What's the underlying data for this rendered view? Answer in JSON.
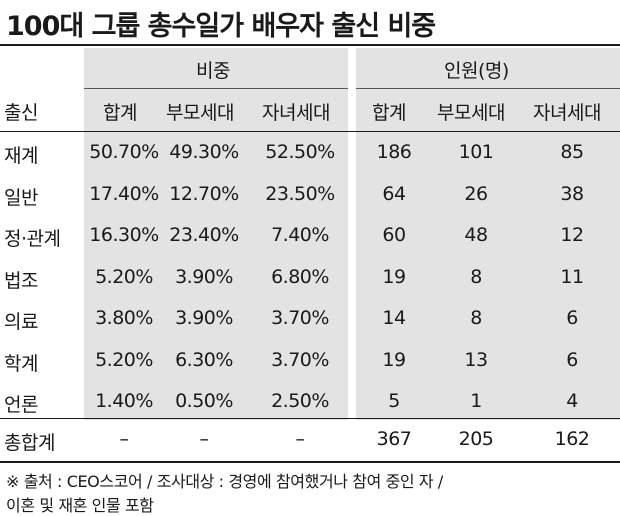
{
  "title": "100대 그룹 총수일가 배우자 출신 비중",
  "groups": {
    "ratio": "비중",
    "count": "인원(명)"
  },
  "columns": {
    "origin": "출신",
    "total": "합계",
    "parent_gen": "부모세대",
    "child_gen": "자녀세대",
    "total2": "합계",
    "parent_gen2": "부모세대",
    "child_gen2": "자녀세대"
  },
  "rows": [
    {
      "origin": "재계",
      "r_total": "50.70%",
      "r_parent": "49.30%",
      "r_child": "52.50%",
      "n_total": "186",
      "n_parent": "101",
      "n_child": "85"
    },
    {
      "origin": "일반",
      "r_total": "17.40%",
      "r_parent": "12.70%",
      "r_child": "23.50%",
      "n_total": "64",
      "n_parent": "26",
      "n_child": "38"
    },
    {
      "origin": "정·관계",
      "r_total": "16.30%",
      "r_parent": "23.40%",
      "r_child": "7.40%",
      "n_total": "60",
      "n_parent": "48",
      "n_child": "12"
    },
    {
      "origin": "법조",
      "r_total": "5.20%",
      "r_parent": "3.90%",
      "r_child": "6.80%",
      "n_total": "19",
      "n_parent": "8",
      "n_child": "11"
    },
    {
      "origin": "의료",
      "r_total": "3.80%",
      "r_parent": "3.90%",
      "r_child": "3.70%",
      "n_total": "14",
      "n_parent": "8",
      "n_child": "6"
    },
    {
      "origin": "학계",
      "r_total": "5.20%",
      "r_parent": "6.30%",
      "r_child": "3.70%",
      "n_total": "19",
      "n_parent": "13",
      "n_child": "6"
    },
    {
      "origin": "언론",
      "r_total": "1.40%",
      "r_parent": "0.50%",
      "r_child": "2.50%",
      "n_total": "5",
      "n_parent": "1",
      "n_child": "4"
    }
  ],
  "total_row": {
    "origin": "총합계",
    "r_total": "–",
    "r_parent": "–",
    "r_child": "–",
    "n_total": "367",
    "n_parent": "205",
    "n_child": "162"
  },
  "notes": {
    "line1": "※ 출처 : CEO스코어 / 조사대상 : 경영에 참여했거나 참여 중인 자 /",
    "line2": "이혼 및 재혼 인물 포함"
  }
}
